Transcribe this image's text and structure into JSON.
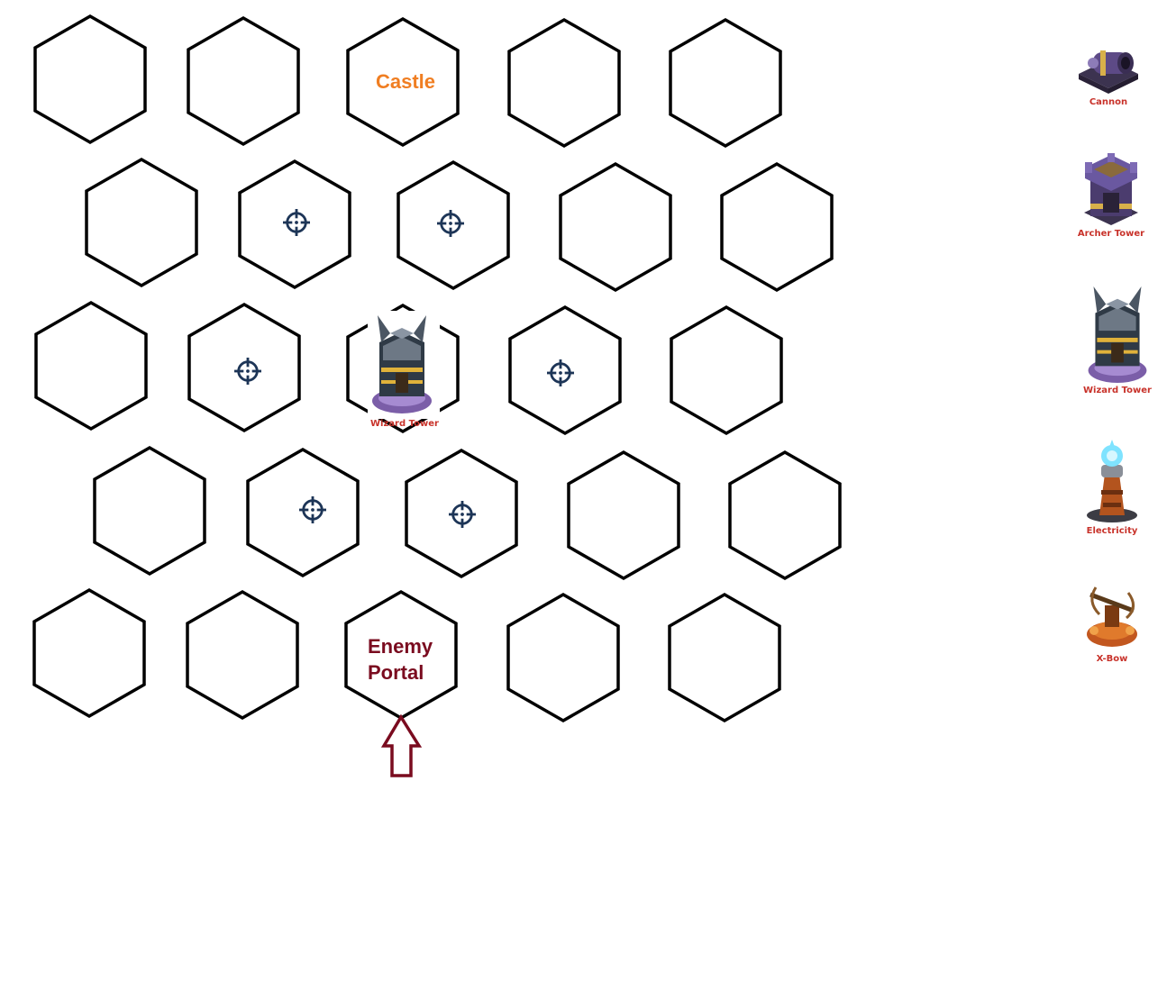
{
  "board": {
    "castle_label": "Castle",
    "enemy_label_line1": "Enemy",
    "enemy_label_line2": "Portal",
    "placed_building_label": "Wizard Tower",
    "hex_stroke": "#000000",
    "target_color": "#1d3557",
    "arrow_color": "#7a0b1f",
    "castle_color": "#f07e22",
    "enemy_color": "#7a0b1f"
  },
  "palette": {
    "label_color": "#c8322a",
    "items": [
      {
        "label": "Cannon",
        "icon": "cannon-icon"
      },
      {
        "label": "Archer Tower",
        "icon": "archer-tower-icon"
      },
      {
        "label": "Wizard Tower",
        "icon": "wizard-tower-icon"
      },
      {
        "label": "Electricity",
        "icon": "electricity-tower-icon"
      },
      {
        "label": "X-Bow",
        "icon": "x-bow-icon"
      }
    ]
  }
}
